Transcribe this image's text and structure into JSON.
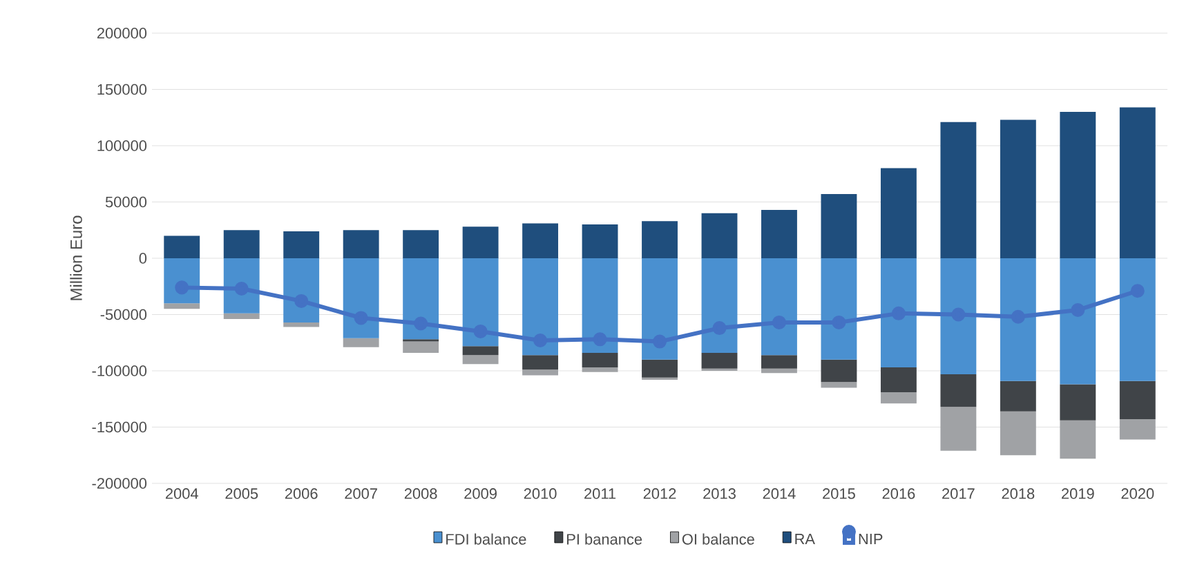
{
  "chart_data": {
    "type": "bar",
    "stacked": true,
    "ylabel": "Million Euro",
    "categories": [
      "2004",
      "2005",
      "2006",
      "2007",
      "2008",
      "2009",
      "2010",
      "2011",
      "2012",
      "2013",
      "2014",
      "2015",
      "2016",
      "2017",
      "2018",
      "2019",
      "2020"
    ],
    "series": [
      {
        "name": "FDI balance",
        "color": "#4a90d0",
        "values": [
          -40000,
          -49000,
          -57000,
          -71000,
          -72000,
          -78000,
          -86000,
          -84000,
          -90000,
          -84000,
          -86000,
          -90000,
          -97000,
          -103000,
          -109000,
          -112000,
          -109000
        ]
      },
      {
        "name": "PI banance",
        "color": "#404448",
        "values": [
          0,
          0,
          0,
          0,
          -2000,
          -8000,
          -13000,
          -13000,
          -16000,
          -14000,
          -12000,
          -20000,
          -22000,
          -29000,
          -27000,
          -32000,
          -34000
        ]
      },
      {
        "name": "OI balance",
        "color": "#a0a2a5",
        "values": [
          -5000,
          -5000,
          -4000,
          -8000,
          -10000,
          -8000,
          -5000,
          -4000,
          -2000,
          -2000,
          -4000,
          -5000,
          -10000,
          -39000,
          -39000,
          -34000,
          -18000
        ]
      },
      {
        "name": "RA",
        "color": "#1f4e7d",
        "values": [
          20000,
          25000,
          24000,
          25000,
          25000,
          28000,
          31000,
          30000,
          33000,
          40000,
          43000,
          57000,
          80000,
          121000,
          123000,
          130000,
          134000
        ]
      },
      {
        "name": "NIP",
        "type": "line",
        "color": "#4472c4",
        "marker": "circle",
        "values": [
          -26000,
          -27000,
          -38000,
          -53000,
          -58000,
          -65000,
          -73000,
          -72000,
          -74000,
          -62000,
          -57000,
          -57000,
          -49000,
          -50000,
          -52000,
          -46000,
          -29000
        ]
      }
    ],
    "ylim": [
      -200000,
      200000
    ],
    "yticks": [
      -200000,
      -150000,
      -100000,
      -50000,
      0,
      50000,
      100000,
      150000,
      200000
    ],
    "grid": "y",
    "legend": "bottom"
  }
}
